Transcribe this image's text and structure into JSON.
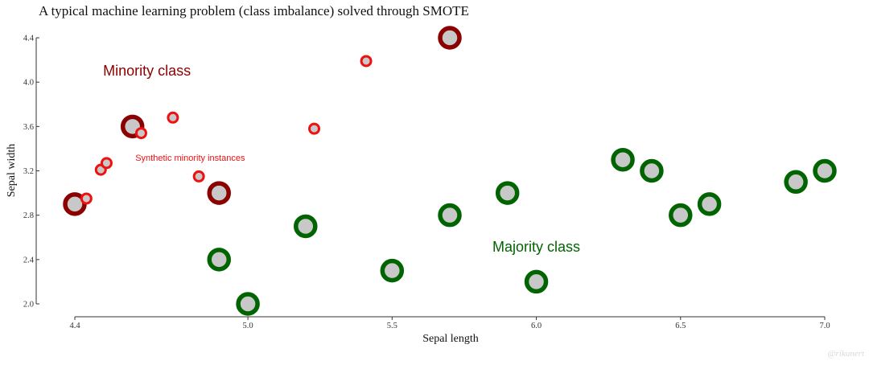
{
  "chart_data": {
    "type": "scatter",
    "title": "A typical machine learning problem (class imbalance) solved through SMOTE",
    "xlabel": "Sepal length",
    "ylabel": "Sepal width",
    "xlim": [
      4.4,
      7.0
    ],
    "ylim": [
      2.0,
      4.4
    ],
    "xticks": [
      "4.4",
      "5.0",
      "5.5",
      "6.0",
      "6.5",
      "7.0"
    ],
    "yticks": [
      "2.0",
      "2.4",
      "2.8",
      "3.2",
      "3.6",
      "4.0",
      "4.4"
    ],
    "grid": false,
    "series": [
      {
        "key": "minority",
        "color": "#8b0000",
        "points": [
          {
            "x": 4.4,
            "y": 2.9
          },
          {
            "x": 4.6,
            "y": 3.6
          },
          {
            "x": 4.9,
            "y": 3.0
          },
          {
            "x": 5.7,
            "y": 4.4
          }
        ]
      },
      {
        "key": "synthetic",
        "color": "#ee1111",
        "points": [
          {
            "x": 4.44,
            "y": 2.95
          },
          {
            "x": 4.49,
            "y": 3.21
          },
          {
            "x": 4.51,
            "y": 3.27
          },
          {
            "x": 4.63,
            "y": 3.54
          },
          {
            "x": 4.74,
            "y": 3.68
          },
          {
            "x": 4.83,
            "y": 3.15
          },
          {
            "x": 5.23,
            "y": 3.58
          },
          {
            "x": 5.41,
            "y": 4.19
          }
        ]
      },
      {
        "key": "majority",
        "color": "#006400",
        "points": [
          {
            "x": 4.9,
            "y": 2.4
          },
          {
            "x": 5.0,
            "y": 2.0
          },
          {
            "x": 5.2,
            "y": 2.7
          },
          {
            "x": 5.5,
            "y": 2.3
          },
          {
            "x": 5.7,
            "y": 2.8
          },
          {
            "x": 5.9,
            "y": 3.0
          },
          {
            "x": 6.0,
            "y": 2.2
          },
          {
            "x": 6.3,
            "y": 3.3
          },
          {
            "x": 6.4,
            "y": 3.2
          },
          {
            "x": 6.5,
            "y": 2.8
          },
          {
            "x": 6.6,
            "y": 2.9
          },
          {
            "x": 6.9,
            "y": 3.1
          },
          {
            "x": 7.0,
            "y": 3.2
          }
        ]
      }
    ],
    "annotations": [
      {
        "key": "minority_label",
        "text": "Minority class",
        "x": 4.65,
        "y": 4.06,
        "color": "#8b0000"
      },
      {
        "key": "synthetic_label",
        "text": "Synthetic minority instances",
        "x": 4.8,
        "y": 3.29,
        "color": "#ee1111"
      },
      {
        "key": "majority_label",
        "text": "Majority class",
        "x": 6.0,
        "y": 2.47,
        "color": "#006400"
      }
    ],
    "marker_fill": "#c8c8c8",
    "watermark": "@rikunert"
  }
}
